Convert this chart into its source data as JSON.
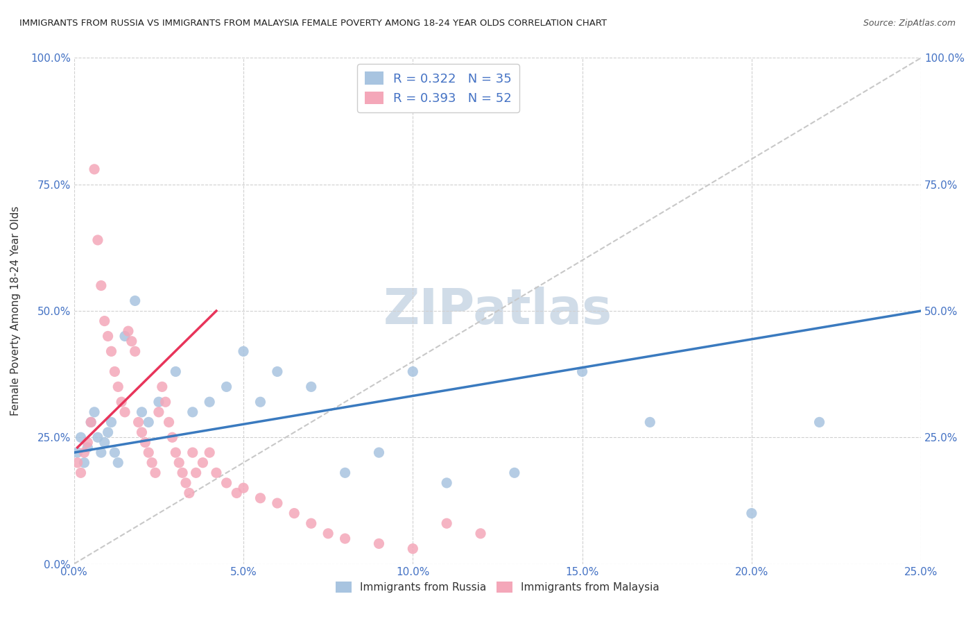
{
  "title": "IMMIGRANTS FROM RUSSIA VS IMMIGRANTS FROM MALAYSIA FEMALE POVERTY AMONG 18-24 YEAR OLDS CORRELATION CHART",
  "source": "Source: ZipAtlas.com",
  "xlabel_bottom": "",
  "ylabel": "Female Poverty Among 18-24 Year Olds",
  "x_min": 0.0,
  "x_max": 0.25,
  "y_min": 0.0,
  "y_max": 1.0,
  "legend_r1": "R = 0.322",
  "legend_n1": "N = 35",
  "legend_r2": "R = 0.393",
  "legend_n2": "N = 52",
  "color_russia": "#a8c4e0",
  "color_malaysia": "#f4a7b9",
  "color_russia_line": "#3a7abf",
  "color_malaysia_line": "#e8345a",
  "color_diag": "#c8c8c8",
  "watermark_color": "#d0dce8",
  "russia_x": [
    0.001,
    0.002,
    0.003,
    0.004,
    0.005,
    0.006,
    0.007,
    0.008,
    0.009,
    0.01,
    0.011,
    0.012,
    0.013,
    0.015,
    0.018,
    0.02,
    0.022,
    0.025,
    0.03,
    0.035,
    0.04,
    0.045,
    0.05,
    0.055,
    0.06,
    0.07,
    0.08,
    0.09,
    0.1,
    0.11,
    0.13,
    0.15,
    0.17,
    0.2,
    0.22
  ],
  "russia_y": [
    0.22,
    0.25,
    0.2,
    0.23,
    0.28,
    0.3,
    0.25,
    0.22,
    0.24,
    0.26,
    0.28,
    0.22,
    0.2,
    0.45,
    0.52,
    0.3,
    0.28,
    0.32,
    0.38,
    0.3,
    0.32,
    0.35,
    0.42,
    0.32,
    0.38,
    0.35,
    0.18,
    0.22,
    0.38,
    0.16,
    0.18,
    0.38,
    0.28,
    0.1,
    0.28
  ],
  "malaysia_x": [
    0.001,
    0.002,
    0.003,
    0.004,
    0.005,
    0.006,
    0.007,
    0.008,
    0.009,
    0.01,
    0.011,
    0.012,
    0.013,
    0.014,
    0.015,
    0.016,
    0.017,
    0.018,
    0.019,
    0.02,
    0.021,
    0.022,
    0.023,
    0.024,
    0.025,
    0.026,
    0.027,
    0.028,
    0.029,
    0.03,
    0.031,
    0.032,
    0.033,
    0.034,
    0.035,
    0.036,
    0.038,
    0.04,
    0.042,
    0.045,
    0.048,
    0.05,
    0.055,
    0.06,
    0.065,
    0.07,
    0.075,
    0.08,
    0.09,
    0.1,
    0.11,
    0.12
  ],
  "malaysia_y": [
    0.2,
    0.18,
    0.22,
    0.24,
    0.28,
    0.78,
    0.64,
    0.55,
    0.48,
    0.45,
    0.42,
    0.38,
    0.35,
    0.32,
    0.3,
    0.46,
    0.44,
    0.42,
    0.28,
    0.26,
    0.24,
    0.22,
    0.2,
    0.18,
    0.3,
    0.35,
    0.32,
    0.28,
    0.25,
    0.22,
    0.2,
    0.18,
    0.16,
    0.14,
    0.22,
    0.18,
    0.2,
    0.22,
    0.18,
    0.16,
    0.14,
    0.15,
    0.13,
    0.12,
    0.1,
    0.08,
    0.06,
    0.05,
    0.04,
    0.03,
    0.08,
    0.06
  ],
  "xtick_labels": [
    "0.0%",
    "5.0%",
    "10.0%",
    "15.0%",
    "20.0%",
    "25.0%"
  ],
  "xtick_values": [
    0.0,
    0.05,
    0.1,
    0.15,
    0.2,
    0.25
  ],
  "ytick_labels": [
    "0.0%",
    "25.0%",
    "50.0%",
    "75.0%",
    "100.0%"
  ],
  "ytick_values": [
    0.0,
    0.25,
    0.5,
    0.75,
    1.0
  ],
  "right_ytick_labels": [
    "100.0%",
    "75.0%",
    "50.0%",
    "25.0%"
  ],
  "right_ytick_values": [
    1.0,
    0.75,
    0.5,
    0.25
  ],
  "marker_size": 120,
  "background_color": "#ffffff",
  "grid_color": "#d0d0d0"
}
